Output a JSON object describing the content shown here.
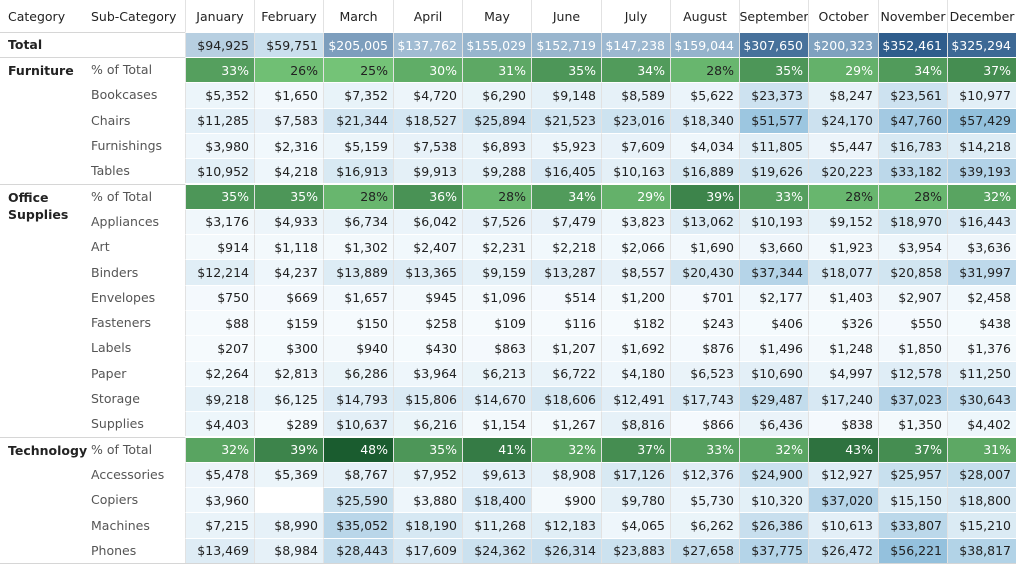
{
  "header": [
    "Category",
    "Sub-Category",
    "January",
    "February",
    "March",
    "April",
    "May",
    "June",
    "July",
    "August",
    "September",
    "October",
    "November",
    "December"
  ],
  "total": {
    "label": "Total",
    "values": [
      "$94,925",
      "$59,751",
      "$205,005",
      "$137,762",
      "$155,029",
      "$152,719",
      "$147,238",
      "$159,044",
      "$307,650",
      "$200,323",
      "$352,461",
      "$325,294"
    ]
  },
  "groups": [
    {
      "category": "Furniture",
      "rows": [
        {
          "label": "% of Total",
          "values": [
            "33%",
            "26%",
            "25%",
            "30%",
            "31%",
            "35%",
            "34%",
            "28%",
            "35%",
            "29%",
            "34%",
            "37%"
          ]
        },
        {
          "label": "Bookcases",
          "values": [
            "$5,352",
            "$1,650",
            "$7,352",
            "$4,720",
            "$6,290",
            "$9,148",
            "$8,589",
            "$5,622",
            "$23,373",
            "$8,247",
            "$23,561",
            "$10,977"
          ]
        },
        {
          "label": "Chairs",
          "values": [
            "$11,285",
            "$7,583",
            "$21,344",
            "$18,527",
            "$25,894",
            "$21,523",
            "$23,016",
            "$18,340",
            "$51,577",
            "$24,170",
            "$47,760",
            "$57,429"
          ]
        },
        {
          "label": "Furnishings",
          "values": [
            "$3,980",
            "$2,316",
            "$5,159",
            "$7,538",
            "$6,893",
            "$5,923",
            "$7,609",
            "$4,034",
            "$11,805",
            "$5,447",
            "$16,783",
            "$14,218"
          ]
        },
        {
          "label": "Tables",
          "values": [
            "$10,952",
            "$4,218",
            "$16,913",
            "$9,913",
            "$9,288",
            "$16,405",
            "$10,163",
            "$16,889",
            "$19,626",
            "$20,223",
            "$33,182",
            "$39,193"
          ]
        }
      ]
    },
    {
      "category": "Office Supplies",
      "rows": [
        {
          "label": "% of Total",
          "values": [
            "35%",
            "35%",
            "28%",
            "36%",
            "28%",
            "34%",
            "29%",
            "39%",
            "33%",
            "28%",
            "28%",
            "32%"
          ]
        },
        {
          "label": "Appliances",
          "values": [
            "$3,176",
            "$4,933",
            "$6,734",
            "$6,042",
            "$7,526",
            "$7,479",
            "$3,823",
            "$13,062",
            "$10,193",
            "$9,152",
            "$18,970",
            "$16,443"
          ]
        },
        {
          "label": "Art",
          "values": [
            "$914",
            "$1,118",
            "$1,302",
            "$2,407",
            "$2,231",
            "$2,218",
            "$2,066",
            "$1,690",
            "$3,660",
            "$1,923",
            "$3,954",
            "$3,636"
          ]
        },
        {
          "label": "Binders",
          "values": [
            "$12,214",
            "$4,237",
            "$13,889",
            "$13,365",
            "$9,159",
            "$13,287",
            "$8,557",
            "$20,430",
            "$37,344",
            "$18,077",
            "$20,858",
            "$31,997"
          ]
        },
        {
          "label": "Envelopes",
          "values": [
            "$750",
            "$669",
            "$1,657",
            "$945",
            "$1,096",
            "$514",
            "$1,200",
            "$701",
            "$2,177",
            "$1,403",
            "$2,907",
            "$2,458"
          ]
        },
        {
          "label": "Fasteners",
          "values": [
            "$88",
            "$159",
            "$150",
            "$258",
            "$109",
            "$116",
            "$182",
            "$243",
            "$406",
            "$326",
            "$550",
            "$438"
          ]
        },
        {
          "label": "Labels",
          "values": [
            "$207",
            "$300",
            "$940",
            "$430",
            "$863",
            "$1,207",
            "$1,692",
            "$876",
            "$1,496",
            "$1,248",
            "$1,850",
            "$1,376"
          ]
        },
        {
          "label": "Paper",
          "values": [
            "$2,264",
            "$2,813",
            "$6,286",
            "$3,964",
            "$6,213",
            "$6,722",
            "$4,180",
            "$6,523",
            "$10,690",
            "$4,997",
            "$12,578",
            "$11,250"
          ]
        },
        {
          "label": "Storage",
          "values": [
            "$9,218",
            "$6,125",
            "$14,793",
            "$15,806",
            "$14,670",
            "$18,606",
            "$12,491",
            "$17,743",
            "$29,487",
            "$17,240",
            "$37,023",
            "$30,643"
          ]
        },
        {
          "label": "Supplies",
          "values": [
            "$4,403",
            "$289",
            "$10,637",
            "$6,216",
            "$1,154",
            "$1,267",
            "$8,816",
            "$866",
            "$6,436",
            "$838",
            "$1,350",
            "$4,402"
          ]
        }
      ]
    },
    {
      "category": "Technology",
      "rows": [
        {
          "label": "% of Total",
          "values": [
            "32%",
            "39%",
            "48%",
            "35%",
            "41%",
            "32%",
            "37%",
            "33%",
            "32%",
            "43%",
            "37%",
            "31%"
          ]
        },
        {
          "label": "Accessories",
          "values": [
            "$5,478",
            "$5,369",
            "$8,767",
            "$7,952",
            "$9,613",
            "$8,908",
            "$17,126",
            "$12,376",
            "$24,900",
            "$12,927",
            "$25,957",
            "$28,007"
          ]
        },
        {
          "label": "Copiers",
          "values": [
            "$3,960",
            null,
            "$25,590",
            "$3,880",
            "$18,400",
            "$900",
            "$9,780",
            "$5,730",
            "$10,320",
            "$37,020",
            "$15,150",
            "$18,800"
          ]
        },
        {
          "label": "Machines",
          "values": [
            "$7,215",
            "$8,990",
            "$35,052",
            "$18,190",
            "$11,268",
            "$12,183",
            "$4,065",
            "$6,262",
            "$26,386",
            "$10,613",
            "$33,807",
            "$15,210"
          ]
        },
        {
          "label": "Phones",
          "values": [
            "$13,469",
            "$8,984",
            "$28,443",
            "$17,609",
            "$24,362",
            "$26,314",
            "$23,883",
            "$27,658",
            "$37,775",
            "$26,472",
            "$56,221",
            "$38,817"
          ]
        }
      ]
    }
  ]
}
